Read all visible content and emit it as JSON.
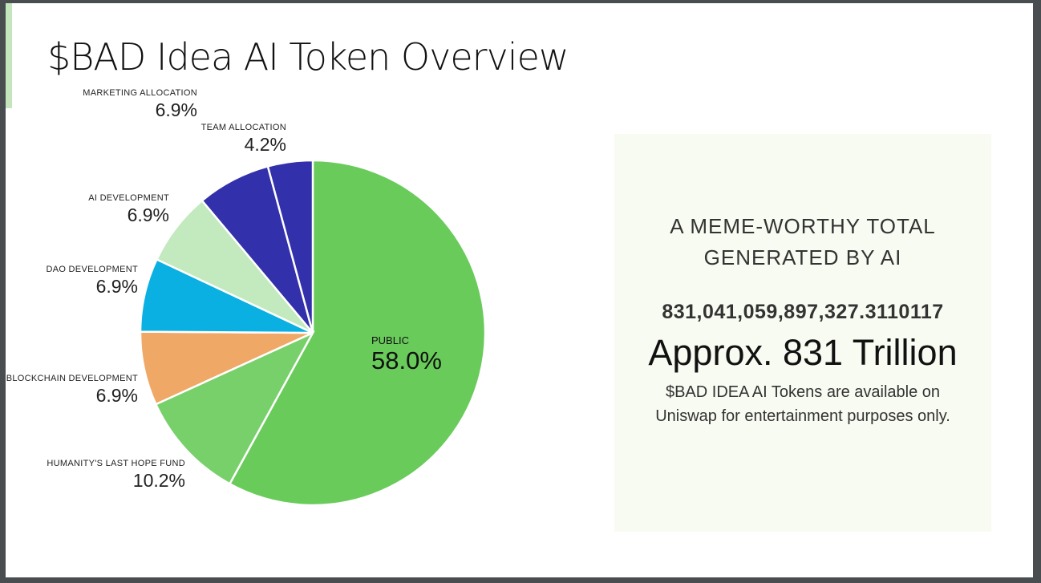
{
  "title": "$BAD Idea AI Token Overview",
  "chart_data": {
    "type": "pie",
    "title": "",
    "start": "top",
    "direction": "clockwise",
    "slices": [
      {
        "label": "PUBLIC",
        "value": 58.0,
        "display": "58.0%",
        "color": "#69cb5a"
      },
      {
        "label": "HUMANITY'S LAST HOPE FUND",
        "value": 10.2,
        "display": "10.2%",
        "color": "#78d06a"
      },
      {
        "label": "BLOCKCHAIN DEVELOPMENT",
        "value": 6.9,
        "display": "6.9%",
        "color": "#efa865"
      },
      {
        "label": "DAO DEVELOPMENT",
        "value": 6.9,
        "display": "6.9%",
        "color": "#0ab0e2"
      },
      {
        "label": "AI DEVELOPMENT",
        "value": 6.9,
        "display": "6.9%",
        "color": "#c3e9bf"
      },
      {
        "label": "MARKETING ALLOCATION",
        "value": 6.9,
        "display": "6.9%",
        "color": "#3330ab"
      },
      {
        "label": "TEAM ALLOCATION",
        "value": 4.2,
        "display": "4.2%",
        "color": "#3330ab"
      }
    ]
  },
  "panel": {
    "heading": "A MEME-WORTHY TOTAL GENERATED BY AI",
    "total": "831,041,059,897,327.3110117",
    "approx": "Approx. 831 Trillion",
    "note": "$BAD IDEA AI Tokens are available on Uniswap for entertainment purposes only."
  }
}
